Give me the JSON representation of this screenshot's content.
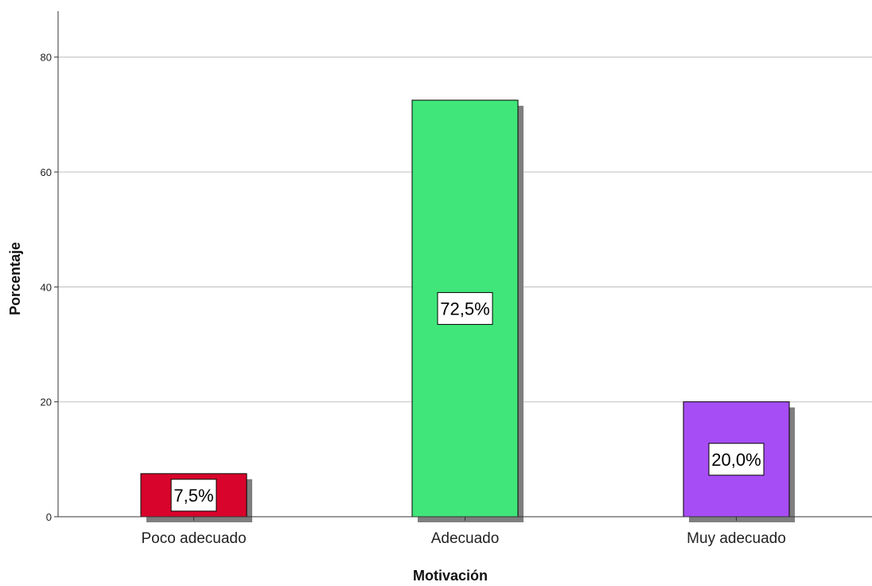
{
  "chart_data": {
    "type": "bar",
    "categories": [
      "Poco adecuado",
      "Adecuado",
      "Muy adecuado"
    ],
    "values": [
      7.5,
      72.5,
      20.0
    ],
    "data_labels": [
      "7,5%",
      "72,5%",
      "20,0%"
    ],
    "colors": [
      "#d9042b",
      "#40e67a",
      "#a64df5"
    ],
    "shadow_color": "#7f7f7f",
    "xlabel": "Motivación",
    "ylabel": "Porcentaje",
    "ylim": [
      0,
      88
    ],
    "yticks": [
      0,
      20,
      40,
      60,
      80
    ],
    "grid": true
  }
}
